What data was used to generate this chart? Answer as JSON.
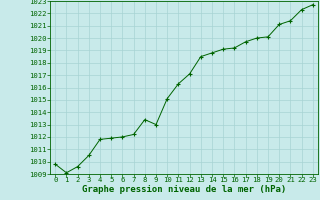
{
  "x": [
    0,
    1,
    2,
    3,
    4,
    5,
    6,
    7,
    8,
    9,
    10,
    11,
    12,
    13,
    14,
    15,
    16,
    17,
    18,
    19,
    20,
    21,
    22,
    23
  ],
  "y": [
    1009.8,
    1009.1,
    1009.6,
    1010.5,
    1011.8,
    1011.9,
    1012.0,
    1012.2,
    1013.4,
    1013.0,
    1015.1,
    1016.3,
    1017.1,
    1018.5,
    1018.8,
    1019.1,
    1019.2,
    1019.7,
    1020.0,
    1020.1,
    1021.1,
    1021.4,
    1022.3,
    1022.7
  ],
  "ylim": [
    1009,
    1023
  ],
  "xlim_min": -0.5,
  "xlim_max": 23.5,
  "yticks": [
    1009,
    1010,
    1011,
    1012,
    1013,
    1014,
    1015,
    1016,
    1017,
    1018,
    1019,
    1020,
    1021,
    1022,
    1023
  ],
  "xticks": [
    0,
    1,
    2,
    3,
    4,
    5,
    6,
    7,
    8,
    9,
    10,
    11,
    12,
    13,
    14,
    15,
    16,
    17,
    18,
    19,
    20,
    21,
    22,
    23
  ],
  "line_color": "#006400",
  "marker_color": "#006400",
  "bg_color": "#c8eaea",
  "grid_color": "#a8d4d4",
  "xlabel": "Graphe pression niveau de la mer (hPa)",
  "xlabel_color": "#006400",
  "tick_color": "#006400",
  "axis_color": "#006400",
  "xlabel_fontsize": 6.5,
  "tick_fontsize": 5.2
}
